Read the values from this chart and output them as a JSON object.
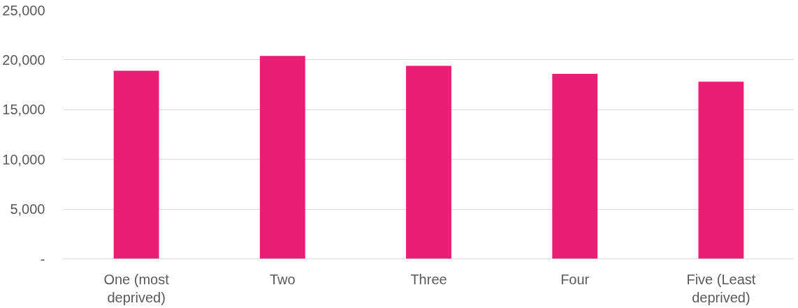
{
  "chart_data": {
    "type": "bar",
    "categories": [
      "One (most deprived)",
      "Two",
      "Three",
      "Four",
      "Five (Least deprived)"
    ],
    "values": [
      18900,
      20400,
      19400,
      18600,
      17800
    ],
    "color": "#e91e75",
    "ylim": [
      0,
      25000
    ],
    "yticks": [
      {
        "value": 0,
        "label": "-"
      },
      {
        "value": 5000,
        "label": "5,000"
      },
      {
        "value": 10000,
        "label": "10,000"
      },
      {
        "value": 15000,
        "label": "15,000"
      },
      {
        "value": 20000,
        "label": "20,000"
      },
      {
        "value": 25000,
        "label": "25,000"
      }
    ],
    "grid": "y"
  }
}
